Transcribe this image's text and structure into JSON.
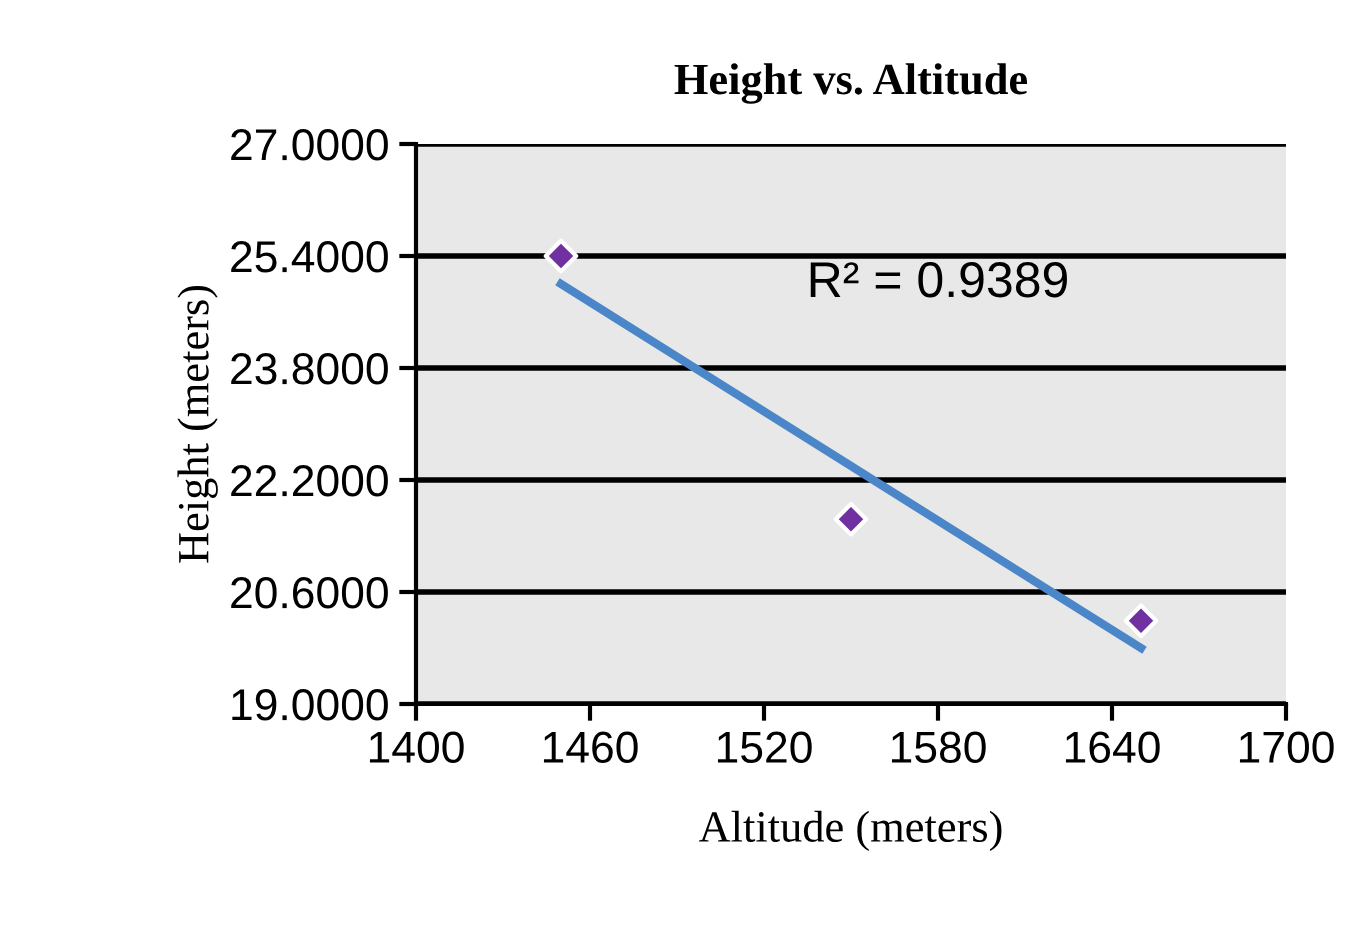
{
  "chart_data": {
    "type": "scatter",
    "title": "Height vs. Altitude",
    "xlabel": "Altitude (meters)",
    "ylabel": "Height (meters)",
    "series": [
      {
        "color": "#7030a0",
        "x": [
          1450,
          1550,
          1650
        ],
        "values": [
          25.4,
          21.64,
          20.19
        ],
        "marker": "diamond"
      },
      {
        "type": "line",
        "color": "#4a86c8",
        "x": [
          1450,
          1650
        ],
        "values": [
          25.0,
          19.8
        ],
        "marker": "none",
        "line_style": "solid"
      }
    ],
    "annotations": [
      "R² = 0.9389"
    ],
    "xlim": [
      1400,
      1700
    ],
    "xticks": [
      1400,
      1460,
      1520,
      1580,
      1640,
      1700
    ],
    "ylim": [
      19,
      27
    ],
    "yticks": [
      {
        "value": 19,
        "label": "19.0000"
      },
      {
        "value": 20.6,
        "label": "20.6000"
      },
      {
        "value": 22.2,
        "label": "22.2000"
      },
      {
        "value": 23.8,
        "label": "23.8000"
      },
      {
        "value": 25.4,
        "label": "25.4000"
      },
      {
        "value": 27,
        "label": "27.0000"
      }
    ],
    "grid": "y",
    "legend": false
  }
}
